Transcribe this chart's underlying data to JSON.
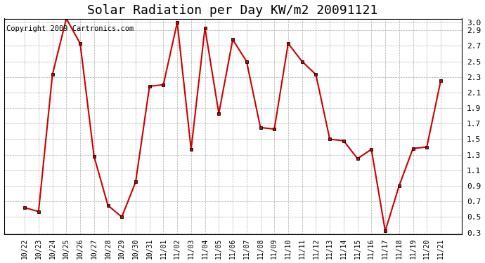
{
  "title": "Solar Radiation per Day KW/m2 20091121",
  "copyright": "Copyright 2009 Cartronics.com",
  "labels": [
    "10/22",
    "10/23",
    "10/24",
    "10/25",
    "10/26",
    "10/27",
    "10/28",
    "10/29",
    "10/30",
    "10/31",
    "11/01",
    "11/02",
    "11/03",
    "11/04",
    "11/05",
    "11/06",
    "11/07",
    "11/08",
    "11/09",
    "11/10",
    "11/11",
    "11/12",
    "11/13",
    "11/14",
    "11/15",
    "11/16",
    "11/17",
    "11/18",
    "11/19",
    "11/20",
    "11/21"
  ],
  "values": [
    0.62,
    0.57,
    2.33,
    3.05,
    2.73,
    1.28,
    0.65,
    0.5,
    0.95,
    2.18,
    2.2,
    3.0,
    1.37,
    2.93,
    1.83,
    2.78,
    2.5,
    1.65,
    1.63,
    2.73,
    2.5,
    2.33,
    1.5,
    1.48,
    1.25,
    1.37,
    0.32,
    0.9,
    1.38,
    1.4,
    2.25
  ],
  "line_color": "#cc0000",
  "marker": "s",
  "marker_size": 3,
  "marker_color": "#000000",
  "ylim_min": 0.28,
  "ylim_max": 3.05,
  "yticks": [
    0.3,
    0.5,
    0.7,
    0.9,
    1.1,
    1.3,
    1.5,
    1.7,
    1.9,
    2.1,
    2.3,
    2.5,
    2.7,
    2.9,
    3.0
  ],
  "background_color": "#ffffff",
  "grid_color": "#999999",
  "title_fontsize": 13,
  "copyright_fontsize": 7.5
}
